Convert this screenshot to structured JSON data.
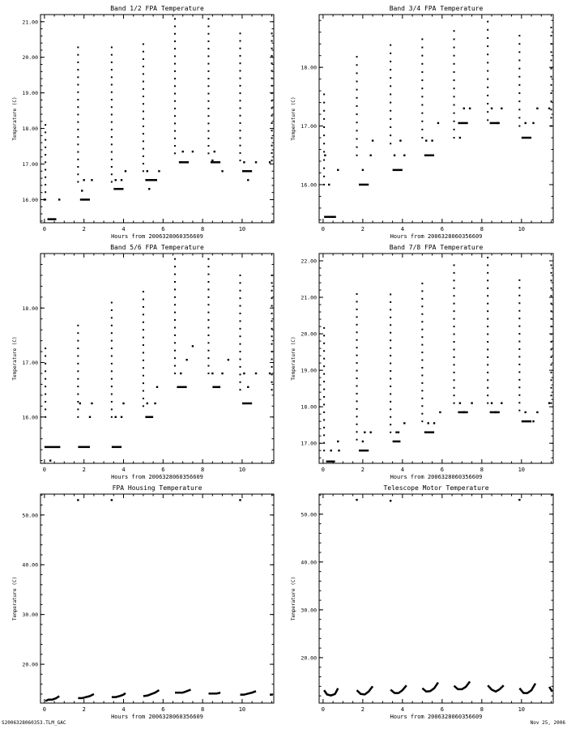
{
  "footer": {
    "left": "S2006328060353.TLM_GAC",
    "right": "Nov 25, 2006"
  },
  "colors": {
    "ink": "#000000",
    "background": "#ffffff"
  },
  "chart_data": [
    {
      "type": "scatter",
      "title": "Band 1/2 FPA Temperature",
      "xlabel": "Hours from 2006328060356609",
      "ylabel": "Temperature (C)",
      "xlim": [
        -0.2,
        11.6
      ],
      "ylim": [
        15.35,
        21.2
      ],
      "xticks": [
        0,
        2,
        4,
        6,
        8,
        10
      ],
      "xtick_labels": [
        "0",
        "2",
        "4",
        "6",
        "8",
        "10"
      ],
      "yticks": [
        16,
        17,
        18,
        19,
        20,
        21
      ],
      "ytick_labels": [
        "16.00",
        "17.00",
        "18.00",
        "19.00",
        "20.00",
        "21.00"
      ],
      "bursts": [
        {
          "x": 0.05,
          "ymin": 16.0,
          "ymax": 18.2,
          "step": 0.21
        },
        {
          "x": 1.7,
          "ymin": 16.5,
          "ymax": 20.3,
          "step": 0.21
        },
        {
          "x": 3.4,
          "ymin": 16.5,
          "ymax": 20.3,
          "step": 0.21
        },
        {
          "x": 5.0,
          "ymin": 16.8,
          "ymax": 20.5,
          "step": 0.21
        },
        {
          "x": 6.6,
          "ymin": 17.3,
          "ymax": 21.1,
          "step": 0.21
        },
        {
          "x": 8.3,
          "ymin": 17.3,
          "ymax": 21.1,
          "step": 0.21
        },
        {
          "x": 9.9,
          "ymin": 17.1,
          "ymax": 20.8,
          "step": 0.21
        },
        {
          "x": 11.5,
          "ymin": 17.1,
          "ymax": 20.8,
          "step": 0.21
        }
      ],
      "segments": [
        {
          "x1": 0.15,
          "x2": 0.6,
          "y": 15.45
        },
        {
          "x1": 1.8,
          "x2": 2.3,
          "y": 16.0
        },
        {
          "x1": 3.5,
          "x2": 4.0,
          "y": 16.3
        },
        {
          "x1": 5.1,
          "x2": 5.7,
          "y": 16.55
        },
        {
          "x1": 6.8,
          "x2": 7.3,
          "y": 17.05
        },
        {
          "x1": 8.4,
          "x2": 8.9,
          "y": 17.05
        },
        {
          "x1": 10.0,
          "x2": 10.5,
          "y": 16.8
        }
      ],
      "points": [
        [
          0.0,
          16.0
        ],
        [
          0.75,
          16.0
        ],
        [
          1.9,
          16.25
        ],
        [
          2.4,
          16.55
        ],
        [
          2.0,
          16.55
        ],
        [
          3.6,
          16.55
        ],
        [
          4.1,
          16.8
        ],
        [
          3.9,
          16.55
        ],
        [
          5.3,
          16.3
        ],
        [
          5.2,
          16.8
        ],
        [
          5.8,
          16.8
        ],
        [
          7.0,
          17.35
        ],
        [
          7.5,
          17.35
        ],
        [
          6.9,
          17.05
        ],
        [
          8.6,
          17.35
        ],
        [
          9.0,
          16.8
        ],
        [
          8.5,
          17.1
        ],
        [
          10.3,
          16.55
        ],
        [
          10.7,
          17.05
        ],
        [
          10.1,
          17.05
        ],
        [
          11.4,
          17.05
        ]
      ]
    },
    {
      "type": "scatter",
      "title": "Band 3/4 FPA Temperature",
      "xlabel": "Hours from 2006328060356609",
      "ylabel": "Temperature (C)",
      "xlim": [
        -0.2,
        11.6
      ],
      "ylim": [
        15.35,
        18.9
      ],
      "xticks": [
        0,
        2,
        4,
        6,
        8,
        10
      ],
      "xtick_labels": [
        "0",
        "2",
        "4",
        "6",
        "8",
        "10"
      ],
      "yticks": [
        16,
        17,
        18
      ],
      "ytick_labels": [
        "16.00",
        "17.00",
        "18.00"
      ],
      "bursts": [
        {
          "x": 0.05,
          "ymin": 16.0,
          "ymax": 17.6,
          "step": 0.14
        },
        {
          "x": 1.7,
          "ymin": 16.5,
          "ymax": 18.2,
          "step": 0.14
        },
        {
          "x": 3.4,
          "ymin": 16.7,
          "ymax": 18.5,
          "step": 0.14
        },
        {
          "x": 5.0,
          "ymin": 16.8,
          "ymax": 18.5,
          "step": 0.14
        },
        {
          "x": 6.6,
          "ymin": 16.8,
          "ymax": 18.7,
          "step": 0.14
        },
        {
          "x": 8.3,
          "ymin": 17.1,
          "ymax": 18.9,
          "step": 0.14
        },
        {
          "x": 9.9,
          "ymin": 17.0,
          "ymax": 18.6,
          "step": 0.14
        },
        {
          "x": 11.5,
          "ymin": 17.0,
          "ymax": 18.7,
          "step": 0.14
        }
      ],
      "segments": [
        {
          "x1": 0.05,
          "x2": 0.65,
          "y": 15.45
        },
        {
          "x1": 1.8,
          "x2": 2.3,
          "y": 16.0
        },
        {
          "x1": 3.5,
          "x2": 4.0,
          "y": 16.25
        },
        {
          "x1": 5.1,
          "x2": 5.6,
          "y": 16.5
        },
        {
          "x1": 6.8,
          "x2": 7.3,
          "y": 17.05
        },
        {
          "x1": 8.4,
          "x2": 8.9,
          "y": 17.05
        },
        {
          "x1": 10.0,
          "x2": 10.5,
          "y": 16.8
        }
      ],
      "points": [
        [
          0.3,
          16.0
        ],
        [
          0.75,
          16.25
        ],
        [
          0.1,
          16.5
        ],
        [
          2.4,
          16.5
        ],
        [
          2.0,
          16.25
        ],
        [
          2.5,
          16.75
        ],
        [
          3.6,
          16.5
        ],
        [
          3.9,
          16.75
        ],
        [
          4.1,
          16.5
        ],
        [
          5.2,
          16.75
        ],
        [
          5.8,
          17.05
        ],
        [
          5.5,
          16.75
        ],
        [
          6.9,
          16.8
        ],
        [
          7.4,
          17.3
        ],
        [
          7.1,
          17.3
        ],
        [
          8.5,
          17.3
        ],
        [
          9.0,
          17.3
        ],
        [
          8.8,
          17.05
        ],
        [
          10.2,
          17.05
        ],
        [
          10.8,
          17.3
        ],
        [
          10.6,
          17.05
        ],
        [
          11.4,
          17.3
        ]
      ]
    },
    {
      "type": "scatter",
      "title": "Band 5/6 FPA Temperature",
      "xlabel": "Hours from 2006328060356609",
      "ylabel": "Temperature (C)",
      "xlim": [
        -0.2,
        11.6
      ],
      "ylim": [
        15.15,
        19.0
      ],
      "xticks": [
        0,
        2,
        4,
        6,
        8,
        10
      ],
      "xtick_labels": [
        "0",
        "2",
        "4",
        "6",
        "8",
        "10"
      ],
      "yticks": [
        16,
        17,
        18
      ],
      "ytick_labels": [
        "16.00",
        "17.00",
        "18.00"
      ],
      "bursts": [
        {
          "x": 0.05,
          "ymin": 16.0,
          "ymax": 17.3,
          "step": 0.14
        },
        {
          "x": 1.7,
          "ymin": 16.0,
          "ymax": 17.8,
          "step": 0.14
        },
        {
          "x": 3.4,
          "ymin": 16.0,
          "ymax": 18.2,
          "step": 0.14
        },
        {
          "x": 5.0,
          "ymin": 16.2,
          "ymax": 18.4,
          "step": 0.14
        },
        {
          "x": 6.6,
          "ymin": 16.8,
          "ymax": 18.9,
          "step": 0.14
        },
        {
          "x": 8.3,
          "ymin": 16.8,
          "ymax": 18.95,
          "step": 0.14
        },
        {
          "x": 9.9,
          "ymin": 16.5,
          "ymax": 18.7,
          "step": 0.14
        },
        {
          "x": 11.5,
          "ymin": 16.5,
          "ymax": 18.7,
          "step": 0.14
        }
      ],
      "segments": [
        {
          "x1": 0.0,
          "x2": 0.8,
          "y": 15.45
        },
        {
          "x1": 1.7,
          "x2": 2.3,
          "y": 15.45
        },
        {
          "x1": 3.4,
          "x2": 3.9,
          "y": 15.45
        },
        {
          "x1": 5.1,
          "x2": 5.5,
          "y": 16.0
        },
        {
          "x1": 6.7,
          "x2": 7.2,
          "y": 16.55
        },
        {
          "x1": 8.5,
          "x2": 8.9,
          "y": 16.55
        },
        {
          "x1": 10.0,
          "x2": 10.5,
          "y": 16.25
        }
      ],
      "points": [
        [
          0.3,
          15.2
        ],
        [
          2.3,
          16.0
        ],
        [
          2.4,
          16.25
        ],
        [
          1.8,
          16.25
        ],
        [
          3.6,
          16.0
        ],
        [
          3.9,
          16.0
        ],
        [
          4.0,
          16.25
        ],
        [
          5.2,
          16.25
        ],
        [
          5.7,
          16.55
        ],
        [
          5.6,
          16.25
        ],
        [
          6.9,
          16.8
        ],
        [
          7.2,
          17.05
        ],
        [
          7.5,
          17.3
        ],
        [
          8.5,
          16.8
        ],
        [
          9.0,
          16.8
        ],
        [
          9.3,
          17.05
        ],
        [
          10.3,
          16.55
        ],
        [
          10.7,
          16.8
        ],
        [
          10.1,
          16.8
        ],
        [
          11.4,
          16.8
        ]
      ]
    },
    {
      "type": "scatter",
      "title": "Band 7/8 FPA Temperature",
      "xlabel": "Hours from 2006328060356609",
      "ylabel": "Temperature (C)",
      "xlim": [
        -0.2,
        11.6
      ],
      "ylim": [
        16.45,
        22.2
      ],
      "xticks": [
        0,
        2,
        4,
        6,
        8,
        10
      ],
      "xtick_labels": [
        "0",
        "2",
        "4",
        "6",
        "8",
        "10"
      ],
      "yticks": [
        17,
        18,
        19,
        20,
        21,
        22
      ],
      "ytick_labels": [
        "17.00",
        "18.00",
        "19.00",
        "20.00",
        "21.00",
        "22.00"
      ],
      "bursts": [
        {
          "x": 0.05,
          "ymin": 16.8,
          "ymax": 20.3,
          "step": 0.21
        },
        {
          "x": 1.7,
          "ymin": 17.1,
          "ymax": 21.1,
          "step": 0.21
        },
        {
          "x": 3.4,
          "ymin": 17.3,
          "ymax": 21.2,
          "step": 0.21
        },
        {
          "x": 5.0,
          "ymin": 17.6,
          "ymax": 21.4,
          "step": 0.21
        },
        {
          "x": 6.6,
          "ymin": 18.1,
          "ymax": 21.9,
          "step": 0.21
        },
        {
          "x": 8.3,
          "ymin": 18.1,
          "ymax": 22.1,
          "step": 0.21
        },
        {
          "x": 9.9,
          "ymin": 17.9,
          "ymax": 21.6,
          "step": 0.21
        },
        {
          "x": 11.5,
          "ymin": 18.1,
          "ymax": 21.9,
          "step": 0.21
        }
      ],
      "segments": [
        {
          "x1": 0.15,
          "x2": 0.6,
          "y": 16.5
        },
        {
          "x1": 1.8,
          "x2": 2.3,
          "y": 16.8
        },
        {
          "x1": 3.5,
          "x2": 3.9,
          "y": 17.05
        },
        {
          "x1": 5.1,
          "x2": 5.6,
          "y": 17.3
        },
        {
          "x1": 6.8,
          "x2": 7.3,
          "y": 17.85
        },
        {
          "x1": 8.4,
          "x2": 8.9,
          "y": 17.85
        },
        {
          "x1": 10.0,
          "x2": 10.5,
          "y": 17.6
        }
      ],
      "points": [
        [
          0.4,
          16.8
        ],
        [
          0.75,
          17.05
        ],
        [
          0.8,
          16.8
        ],
        [
          2.0,
          17.05
        ],
        [
          2.4,
          17.3
        ],
        [
          2.1,
          17.3
        ],
        [
          3.7,
          17.3
        ],
        [
          4.1,
          17.55
        ],
        [
          3.8,
          17.3
        ],
        [
          5.3,
          17.55
        ],
        [
          5.9,
          17.85
        ],
        [
          5.6,
          17.55
        ],
        [
          6.9,
          18.1
        ],
        [
          7.5,
          18.1
        ],
        [
          7.1,
          17.85
        ],
        [
          8.5,
          18.1
        ],
        [
          9.0,
          18.1
        ],
        [
          8.7,
          17.85
        ],
        [
          10.2,
          17.85
        ],
        [
          10.8,
          17.85
        ],
        [
          10.6,
          17.6
        ],
        [
          11.4,
          18.1
        ]
      ]
    },
    {
      "type": "scatter",
      "title": "FPA Housing Temperature",
      "xlabel": "Hours from 2006328060356609",
      "ylabel": "Temperature (C)",
      "xlim": [
        -0.2,
        11.6
      ],
      "ylim": [
        12.2,
        54.2
      ],
      "xticks": [
        0,
        2,
        4,
        6,
        8,
        10
      ],
      "xtick_labels": [
        "0",
        "2",
        "4",
        "6",
        "8",
        "10"
      ],
      "yticks": [
        20,
        30,
        40,
        50
      ],
      "ytick_labels": [
        "20.00",
        "30.00",
        "40.00",
        "50.00"
      ],
      "bursts": [],
      "segments": [],
      "points": [
        [
          1.7,
          53.0
        ],
        [
          3.4,
          53.0
        ],
        [
          9.9,
          53.0
        ]
      ],
      "curves": [
        [
          [
            0.05,
            12.6
          ],
          [
            0.2,
            12.9
          ],
          [
            0.4,
            12.9
          ],
          [
            0.6,
            13.2
          ],
          [
            0.75,
            13.6
          ]
        ],
        [
          [
            1.7,
            13.2
          ],
          [
            1.9,
            13.2
          ],
          [
            2.1,
            13.4
          ],
          [
            2.3,
            13.6
          ],
          [
            2.5,
            14.0
          ]
        ],
        [
          [
            3.4,
            13.4
          ],
          [
            3.6,
            13.4
          ],
          [
            3.8,
            13.6
          ],
          [
            4.0,
            13.9
          ],
          [
            4.1,
            14.2
          ]
        ],
        [
          [
            5.0,
            13.6
          ],
          [
            5.2,
            13.7
          ],
          [
            5.4,
            14.0
          ],
          [
            5.6,
            14.3
          ],
          [
            5.8,
            14.8
          ]
        ],
        [
          [
            6.6,
            14.3
          ],
          [
            6.8,
            14.3
          ],
          [
            7.0,
            14.3
          ],
          [
            7.2,
            14.6
          ],
          [
            7.4,
            14.9
          ]
        ],
        [
          [
            8.3,
            14.1
          ],
          [
            8.5,
            14.1
          ],
          [
            8.7,
            14.1
          ],
          [
            8.9,
            14.3
          ]
        ],
        [
          [
            9.9,
            13.9
          ],
          [
            10.1,
            13.9
          ],
          [
            10.3,
            14.1
          ],
          [
            10.5,
            14.3
          ],
          [
            10.7,
            14.6
          ]
        ],
        [
          [
            11.4,
            13.9
          ],
          [
            11.55,
            13.9
          ]
        ]
      ]
    },
    {
      "type": "scatter",
      "title": "Telescope Motor Temperature",
      "xlabel": "Hours from 2006328060356609",
      "ylabel": "Temperature (C)",
      "xlim": [
        -0.2,
        11.6
      ],
      "ylim": [
        10.5,
        54.2
      ],
      "xticks": [
        0,
        2,
        4,
        6,
        8,
        10
      ],
      "xtick_labels": [
        "0",
        "2",
        "4",
        "6",
        "8",
        "10"
      ],
      "yticks": [
        20,
        30,
        40,
        50
      ],
      "ytick_labels": [
        "20.00",
        "30.00",
        "40.00",
        "50.00"
      ],
      "bursts": [],
      "segments": [],
      "points": [
        [
          1.7,
          53.0
        ],
        [
          3.4,
          52.8
        ],
        [
          9.9,
          53.0
        ]
      ],
      "curves": [
        [
          [
            0.05,
            13.2
          ],
          [
            0.2,
            12.3
          ],
          [
            0.4,
            12.1
          ],
          [
            0.6,
            12.4
          ],
          [
            0.75,
            13.6
          ]
        ],
        [
          [
            1.7,
            13.2
          ],
          [
            1.9,
            12.4
          ],
          [
            2.1,
            12.3
          ],
          [
            2.3,
            12.9
          ],
          [
            2.5,
            14.0
          ]
        ],
        [
          [
            3.4,
            13.3
          ],
          [
            3.6,
            12.6
          ],
          [
            3.8,
            12.6
          ],
          [
            4.0,
            13.2
          ],
          [
            4.2,
            14.2
          ]
        ],
        [
          [
            5.0,
            13.6
          ],
          [
            5.2,
            12.9
          ],
          [
            5.4,
            13.0
          ],
          [
            5.6,
            13.6
          ],
          [
            5.8,
            14.8
          ]
        ],
        [
          [
            6.6,
            14.1
          ],
          [
            6.8,
            13.4
          ],
          [
            7.0,
            13.4
          ],
          [
            7.2,
            13.9
          ],
          [
            7.4,
            15.0
          ]
        ],
        [
          [
            8.3,
            14.2
          ],
          [
            8.5,
            13.3
          ],
          [
            8.7,
            12.9
          ],
          [
            8.9,
            13.4
          ],
          [
            9.1,
            14.2
          ]
        ],
        [
          [
            9.9,
            13.6
          ],
          [
            10.1,
            12.6
          ],
          [
            10.3,
            12.6
          ],
          [
            10.5,
            13.2
          ],
          [
            10.7,
            14.6
          ]
        ],
        [
          [
            11.4,
            13.9
          ],
          [
            11.55,
            12.9
          ]
        ]
      ]
    }
  ]
}
